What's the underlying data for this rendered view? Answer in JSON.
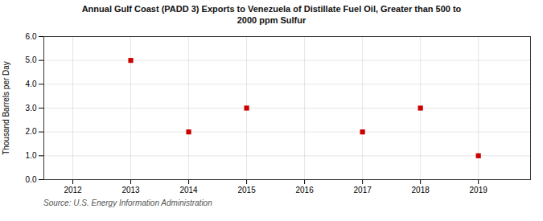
{
  "chart_data": {
    "type": "scatter",
    "title": "Annual Gulf Coast (PADD 3) Exports to Venezuela of Distillate Fuel Oil, Greater than 500 to\n2000 ppm Sulfur",
    "y_label": "Thousand Barrels per Day",
    "annotations": [
      "Source: U.S. Energy Information Administration"
    ],
    "x": [
      2013,
      2014,
      2015,
      2017,
      2018,
      2019
    ],
    "values": [
      5.0,
      2.0,
      3.0,
      2.0,
      3.0,
      1.0
    ],
    "color": "#cc0000",
    "marker": "square",
    "xlim": [
      2011.5,
      2019.9
    ],
    "ylim": [
      0.0,
      6.0
    ],
    "xticks": [
      2012,
      2013,
      2014,
      2015,
      2016,
      2017,
      2018,
      2019
    ],
    "yticks": [
      {
        "value": 0,
        "label": "0.0"
      },
      {
        "value": 1,
        "label": "1.0"
      },
      {
        "value": 2,
        "label": "2.0"
      },
      {
        "value": 3,
        "label": "3.0"
      },
      {
        "value": 4,
        "label": "4.0"
      },
      {
        "value": 5,
        "label": "5.0"
      },
      {
        "value": 6,
        "label": "6.0"
      }
    ],
    "grid": true
  }
}
